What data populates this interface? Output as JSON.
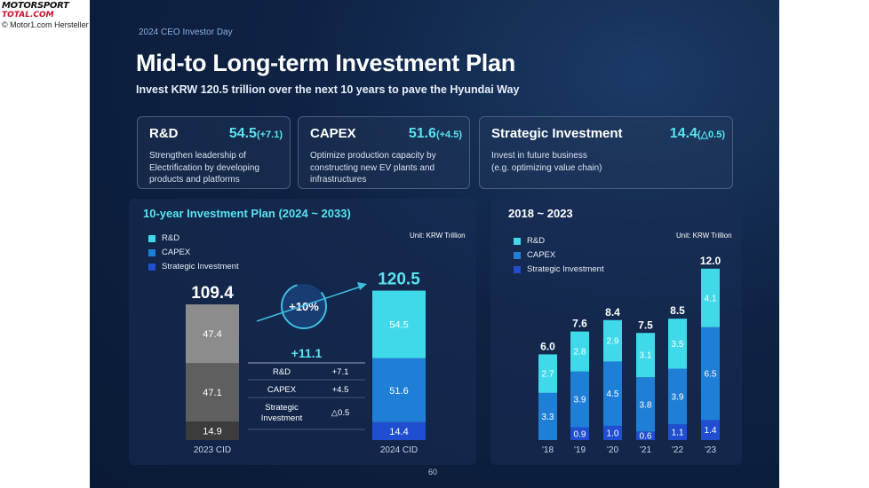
{
  "watermark": {
    "brand_line1": "MOTORSPORT",
    "brand_line2": "TOTAL.COM",
    "credit": "© Motor1.com Hersteller"
  },
  "slide": {
    "tag": "2024 CEO Investor Day",
    "title": "Mid-to Long-term Investment Plan",
    "subtitle": "Invest KRW 120.5 trillion over the next 10 years to pave the Hyundai Way",
    "page_number": "60"
  },
  "cards": [
    {
      "name": "R&D",
      "value": "54.5",
      "change": "(+7.1)",
      "desc": [
        "Strengthen leadership of",
        "Electrification by developing",
        "products and platforms"
      ]
    },
    {
      "name": "CAPEX",
      "value": "51.6",
      "change": "(+4.5)",
      "desc": [
        "Optimize production capacity by",
        "constructing new EV plants and",
        "infrastructures"
      ]
    },
    {
      "name": "Strategic Investment",
      "value": "14.4",
      "change": "(△0.5)",
      "desc": [
        "Invest in future business",
        "(e.g. optimizing value chain)"
      ]
    }
  ],
  "colors": {
    "rd": "#3fd9ea",
    "capex": "#1f7fd6",
    "strategic": "#1f4fd0",
    "accent": "#57e4f0",
    "cid2023_rd": "#8c8c8c",
    "cid2023_capex": "#5f5f5f",
    "cid2023_strategic": "#3c3c3c"
  },
  "chart_data": [
    {
      "type": "bar",
      "title": "10-year Investment Plan (2024 ~ 2033)",
      "unit": "Unit: KRW Trillion",
      "legend": [
        "R&D",
        "CAPEX",
        "Strategic Investment"
      ],
      "categories": [
        "2023 CID",
        "2024 CID"
      ],
      "series": [
        {
          "name": "Strategic Investment",
          "values": [
            14.9,
            14.4
          ]
        },
        {
          "name": "CAPEX",
          "values": [
            47.1,
            51.6
          ]
        },
        {
          "name": "R&D",
          "values": [
            47.4,
            54.5
          ]
        }
      ],
      "totals": [
        "109.4",
        "120.5"
      ],
      "growth_label": "+10%",
      "diff": {
        "total": "+11.1",
        "rows": [
          {
            "label": "R&D",
            "value": "+7.1"
          },
          {
            "label": "CAPEX",
            "value": "+4.5"
          },
          {
            "label": [
              "Strategic",
              "Investment"
            ],
            "value": "△0.5"
          }
        ]
      }
    },
    {
      "type": "bar",
      "title": "2018 ~ 2023",
      "unit": "Unit: KRW Trillion",
      "legend": [
        "R&D",
        "CAPEX",
        "Strategic Investment"
      ],
      "categories": [
        "'18",
        "'19",
        "'20",
        "'21",
        "'22",
        "'23"
      ],
      "series": [
        {
          "name": "Strategic Investment",
          "values": [
            null,
            0.9,
            1.0,
            0.6,
            1.1,
            1.4
          ]
        },
        {
          "name": "CAPEX",
          "values": [
            3.3,
            3.9,
            4.5,
            3.8,
            3.9,
            6.5
          ]
        },
        {
          "name": "R&D",
          "values": [
            2.7,
            2.8,
            2.9,
            3.1,
            3.5,
            4.1
          ]
        }
      ],
      "totals": [
        "6.0",
        "7.6",
        "8.4",
        "7.5",
        "8.5",
        "12.0"
      ]
    }
  ]
}
